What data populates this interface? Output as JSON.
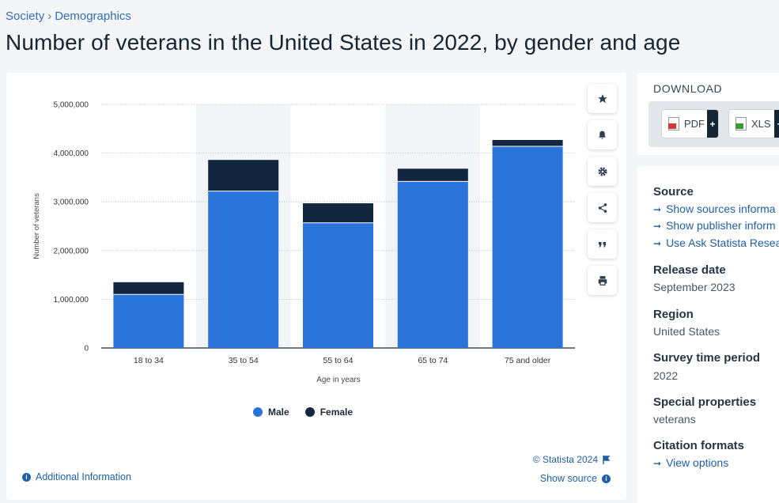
{
  "breadcrumb": {
    "items": [
      "Society",
      "Demographics"
    ],
    "separator": "›"
  },
  "page_title": "Number of veterans in the United States in 2022, by gender and age",
  "colors": {
    "male": "#2a73d9",
    "female": "#12263f",
    "link": "#1e5fa8",
    "hover_band": "#f3f4f6"
  },
  "tools": [
    "star-icon",
    "bell-icon",
    "gear-icon",
    "share-icon",
    "quote-icon",
    "print-icon"
  ],
  "chart_data": {
    "type": "bar",
    "stacked": true,
    "title": "",
    "xlabel": "Age in years",
    "ylabel": "Number of veterans",
    "categories": [
      "18 to 34",
      "35 to 54",
      "55 to 64",
      "65 to 74",
      "75 and older"
    ],
    "series": [
      {
        "name": "Male",
        "values": [
          1100000,
          3220000,
          2570000,
          3420000,
          4140000
        ]
      },
      {
        "name": "Female",
        "values": [
          250000,
          640000,
          400000,
          260000,
          130000
        ]
      }
    ],
    "ylim": [
      0,
      5000000
    ],
    "yticks": [
      0,
      1000000,
      2000000,
      3000000,
      4000000,
      5000000
    ],
    "ytick_labels": [
      "0",
      "1,000,000",
      "2,000,000",
      "3,000,000",
      "4,000,000",
      "5,000,000"
    ],
    "grid": true,
    "legend_position": "bottom"
  },
  "footer": {
    "copyright": "© Statista 2024",
    "additional_info": "Additional Information",
    "show_source": "Show source"
  },
  "download": {
    "title": "DOWNLOAD",
    "pdf_label": "PDF",
    "xls_label": "XLS",
    "plus": "+"
  },
  "info": {
    "source_label": "Source",
    "source_links": [
      "Show sources informa",
      "Show publisher inform",
      "Use Ask Statista Resea"
    ],
    "release_label": "Release date",
    "release_value": "September 2023",
    "region_label": "Region",
    "region_value": "United States",
    "survey_label": "Survey time period",
    "survey_value": "2022",
    "special_label": "Special properties",
    "special_value": "veterans",
    "citation_label": "Citation formats",
    "citation_link": "View options"
  }
}
